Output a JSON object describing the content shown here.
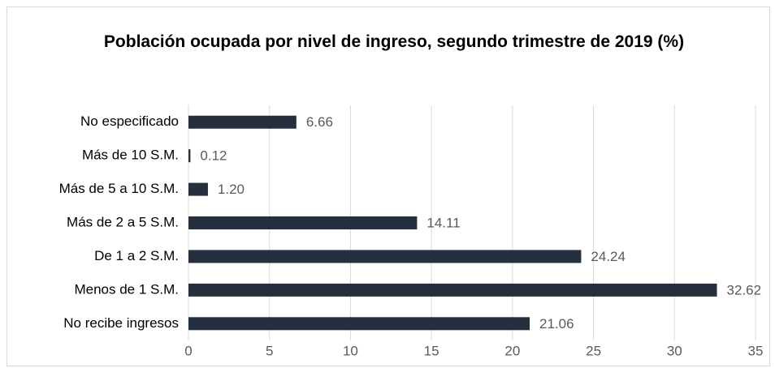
{
  "chart_data": {
    "type": "hbar",
    "title": "Población ocupada por nivel de ingreso, segundo trimestre de 2019 (%)",
    "categories": [
      "No especificado",
      "Más de 10 S.M.",
      "Más de 5 a 10 S.M.",
      "Más de 2 a 5 S.M.",
      "De 1 a 2 S.M.",
      "Menos de 1 S.M.",
      "No recibe ingresos"
    ],
    "values": [
      6.66,
      0.12,
      1.2,
      14.11,
      24.24,
      32.62,
      21.06
    ],
    "value_labels": [
      "6.66",
      "0.12",
      "1.20",
      "14.11",
      "24.24",
      "32.62",
      "21.06"
    ],
    "color": "#262f3d",
    "xlim": [
      0,
      35
    ],
    "xticks": [
      0,
      5,
      10,
      15,
      20,
      25,
      30,
      35
    ],
    "grid": true
  }
}
